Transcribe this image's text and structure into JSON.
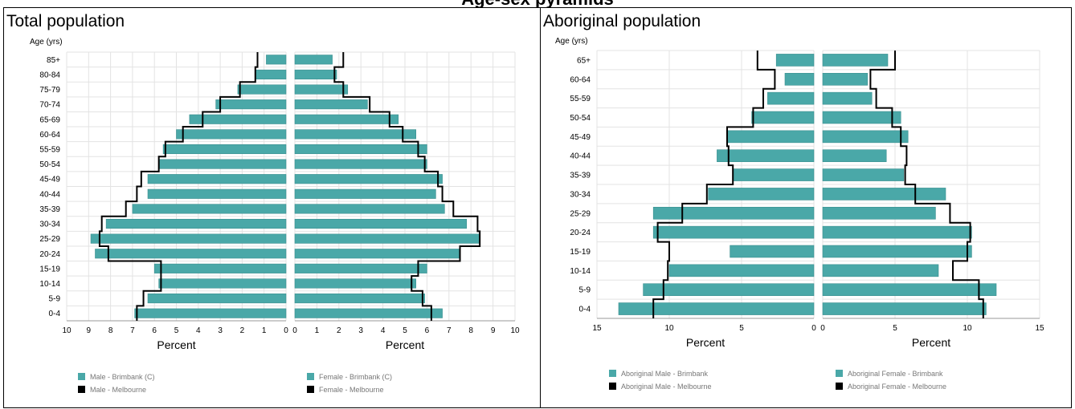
{
  "page_title": "Age-sex pyramids",
  "chart_data": [
    {
      "type": "bar",
      "title": "Total population",
      "age_label": "Age (yrs)",
      "xlabel": "Percent",
      "categories": [
        "0-4",
        "5-9",
        "10-14",
        "15-19",
        "20-24",
        "25-29",
        "30-34",
        "35-39",
        "40-44",
        "45-49",
        "50-54",
        "55-59",
        "60-64",
        "65-69",
        "70-74",
        "75-79",
        "80-84",
        "85+"
      ],
      "xlim": [
        0,
        10
      ],
      "ticks": [
        "10",
        "9",
        "8",
        "7",
        "6",
        "5",
        "4",
        "3",
        "2",
        "1",
        "0"
      ],
      "ticks_right": [
        "0",
        "1",
        "2",
        "3",
        "4",
        "5",
        "6",
        "7",
        "8",
        "9",
        "10"
      ],
      "grid": true,
      "series": [
        {
          "name": "Male - Brimbank (C)",
          "kind": "bar",
          "side": "left",
          "color": "#4aa8a8",
          "values": [
            6.9,
            6.3,
            5.8,
            6.0,
            8.7,
            8.9,
            8.2,
            7.0,
            6.3,
            6.3,
            5.8,
            5.6,
            5.0,
            4.4,
            3.2,
            2.2,
            1.4,
            0.9
          ]
        },
        {
          "name": "Female - Brimbank (C)",
          "kind": "bar",
          "side": "right",
          "color": "#4aa8a8",
          "values": [
            6.7,
            5.9,
            5.5,
            6.0,
            7.5,
            8.4,
            7.8,
            6.8,
            6.4,
            6.7,
            6.0,
            6.0,
            5.5,
            4.7,
            3.3,
            2.4,
            1.9,
            1.7
          ]
        },
        {
          "name": "Male - Melbourne",
          "kind": "line",
          "side": "left",
          "color": "#000000",
          "values": [
            6.8,
            6.5,
            5.7,
            5.7,
            8.1,
            8.5,
            8.4,
            7.3,
            6.8,
            6.6,
            5.8,
            5.5,
            4.7,
            3.8,
            3.0,
            2.1,
            1.4,
            1.3
          ]
        },
        {
          "name": "Female - Melbourne",
          "kind": "line",
          "side": "right",
          "color": "#000000",
          "values": [
            6.2,
            5.8,
            5.3,
            5.6,
            7.5,
            8.4,
            8.3,
            7.2,
            6.7,
            6.5,
            5.9,
            5.6,
            4.9,
            4.3,
            3.4,
            2.2,
            1.8,
            2.2
          ]
        }
      ]
    },
    {
      "type": "bar",
      "title": "Aboriginal population",
      "age_label": "Age (yrs)",
      "xlabel": "Percent",
      "categories": [
        "0-4",
        "5-9",
        "10-14",
        "15-19",
        "20-24",
        "25-29",
        "30-34",
        "35-39",
        "40-44",
        "45-49",
        "50-54",
        "55-59",
        "60-64",
        "65+"
      ],
      "xlim": [
        0,
        15
      ],
      "ticks": [
        "15",
        "10",
        "5",
        "0"
      ],
      "ticks_right": [
        "0",
        "5",
        "10",
        "15"
      ],
      "grid": true,
      "series": [
        {
          "name": "Aboriginal Male - Brimbank",
          "kind": "bar",
          "side": "left",
          "color": "#4aa8a8",
          "values": [
            13.5,
            11.8,
            10.0,
            5.8,
            11.1,
            11.1,
            7.3,
            5.6,
            6.7,
            6.0,
            4.3,
            3.2,
            2.0,
            2.6
          ]
        },
        {
          "name": "Aboriginal Female - Brimbank",
          "kind": "bar",
          "side": "right",
          "color": "#4aa8a8",
          "values": [
            11.3,
            12.0,
            8.0,
            10.3,
            10.3,
            7.8,
            8.5,
            5.6,
            4.4,
            5.9,
            5.4,
            3.4,
            3.1,
            4.5
          ]
        },
        {
          "name": "Aboriginal Male - Melbourne",
          "kind": "line",
          "side": "left",
          "color": "#000000",
          "values": [
            11.1,
            10.4,
            10.1,
            10.0,
            10.8,
            9.1,
            7.4,
            5.6,
            5.9,
            6.0,
            4.2,
            3.5,
            2.7,
            3.9
          ]
        },
        {
          "name": "Aboriginal Female - Melbourne",
          "kind": "line",
          "side": "right",
          "color": "#000000",
          "values": [
            11.1,
            10.8,
            9.0,
            10.0,
            10.2,
            8.8,
            6.4,
            5.7,
            5.8,
            5.4,
            4.8,
            3.7,
            3.3,
            5.0
          ]
        }
      ]
    }
  ]
}
